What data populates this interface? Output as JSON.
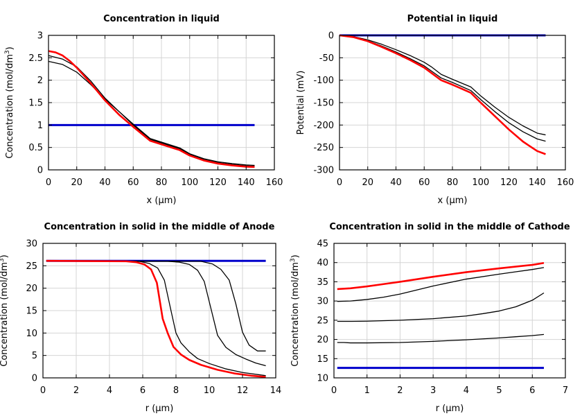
{
  "chart_data": [
    {
      "type": "line",
      "title": "Concentration in liquid",
      "xlabel": "x (µm)",
      "ylabel_main": "Concentration (mol/dm",
      "ylabel_sup": "3",
      "ylabel_tail": ")",
      "xlim": [
        0,
        160
      ],
      "ylim": [
        0,
        3
      ],
      "xticks": [
        0,
        20,
        40,
        60,
        80,
        100,
        120,
        140,
        160
      ],
      "yticks": [
        0,
        0.5,
        1,
        1.5,
        2,
        2.5,
        3
      ],
      "series": [
        {
          "name": "t0",
          "color": "#0000cc",
          "width": 3,
          "x": [
            0,
            146
          ],
          "y": [
            1.0,
            1.0
          ]
        },
        {
          "name": "t1",
          "color": "#000000",
          "width": 1.3,
          "x": [
            0,
            10,
            20,
            30,
            40,
            50,
            60,
            72,
            93,
            100,
            110,
            120,
            130,
            140,
            146
          ],
          "y": [
            2.42,
            2.35,
            2.18,
            1.9,
            1.58,
            1.3,
            1.02,
            0.7,
            0.49,
            0.36,
            0.25,
            0.18,
            0.14,
            0.11,
            0.1
          ]
        },
        {
          "name": "t2",
          "color": "#000000",
          "width": 1.3,
          "x": [
            0,
            10,
            20,
            30,
            40,
            50,
            60,
            72,
            93,
            100,
            110,
            120,
            130,
            140,
            146
          ],
          "y": [
            2.55,
            2.47,
            2.3,
            1.98,
            1.6,
            1.3,
            1.0,
            0.68,
            0.47,
            0.34,
            0.23,
            0.16,
            0.12,
            0.09,
            0.08
          ]
        },
        {
          "name": "t3",
          "color": "#ff0000",
          "width": 2.6,
          "x": [
            0,
            5,
            10,
            15,
            20,
            30,
            40,
            50,
            60,
            72,
            93,
            100,
            110,
            120,
            130,
            140,
            146
          ],
          "y": [
            2.65,
            2.62,
            2.55,
            2.43,
            2.28,
            1.93,
            1.55,
            1.23,
            0.96,
            0.65,
            0.44,
            0.32,
            0.21,
            0.14,
            0.1,
            0.07,
            0.065
          ]
        }
      ]
    },
    {
      "type": "line",
      "title": "Potential in liquid",
      "xlabel": "x (µm)",
      "ylabel_main": "Potential (mV)",
      "ylabel_sup": "",
      "ylabel_tail": "",
      "xlim": [
        0,
        160
      ],
      "ylim": [
        -300,
        0
      ],
      "xticks": [
        0,
        20,
        40,
        60,
        80,
        100,
        120,
        140,
        160
      ],
      "yticks": [
        0,
        -50,
        -100,
        -150,
        -200,
        -250,
        -300
      ],
      "series": [
        {
          "name": "t0",
          "color": "#0000cc",
          "width": 3,
          "x": [
            0,
            146
          ],
          "y": [
            0,
            0
          ]
        },
        {
          "name": "t1",
          "color": "#000000",
          "width": 1.3,
          "x": [
            0,
            10,
            20,
            30,
            40,
            50,
            60,
            65,
            72,
            80,
            93,
            100,
            110,
            120,
            130,
            140,
            146
          ],
          "y": [
            0,
            -3,
            -10,
            -20,
            -32,
            -45,
            -60,
            -70,
            -87,
            -98,
            -115,
            -135,
            -160,
            -183,
            -202,
            -218,
            -222
          ]
        },
        {
          "name": "t2",
          "color": "#000000",
          "width": 1.3,
          "x": [
            0,
            10,
            20,
            30,
            40,
            50,
            60,
            72,
            80,
            93,
            100,
            110,
            120,
            130,
            140,
            146
          ],
          "y": [
            0,
            -4,
            -12,
            -24,
            -37,
            -52,
            -68,
            -95,
            -105,
            -123,
            -143,
            -170,
            -195,
            -215,
            -231,
            -236
          ]
        },
        {
          "name": "t3",
          "color": "#ff0000",
          "width": 2.6,
          "x": [
            0,
            10,
            20,
            30,
            40,
            50,
            60,
            72,
            80,
            93,
            100,
            110,
            120,
            130,
            140,
            146
          ],
          "y": [
            0,
            -4,
            -13,
            -26,
            -40,
            -55,
            -72,
            -100,
            -110,
            -128,
            -150,
            -180,
            -210,
            -237,
            -258,
            -265
          ]
        }
      ]
    },
    {
      "type": "line",
      "title": "Concentration in solid in the middle of Anode",
      "xlabel": "r (µm)",
      "ylabel_main": "Concentration (mol/dm",
      "ylabel_sup": "3",
      "ylabel_tail": ")",
      "xlim": [
        0,
        14
      ],
      "ylim": [
        0,
        30
      ],
      "xticks": [
        0,
        2,
        4,
        6,
        8,
        10,
        12,
        14
      ],
      "yticks": [
        0,
        5,
        10,
        15,
        20,
        25,
        30
      ],
      "series": [
        {
          "name": "t0",
          "color": "#0000cc",
          "width": 3,
          "x": [
            0.2,
            13.4
          ],
          "y": [
            26.1,
            26.1
          ]
        },
        {
          "name": "t1",
          "color": "#000000",
          "width": 1.3,
          "x": [
            0.2,
            9.5,
            10.2,
            10.7,
            11.2,
            11.6,
            12.0,
            12.4,
            12.9,
            13.4
          ],
          "y": [
            26.1,
            26.0,
            25.4,
            24.2,
            21.8,
            16.5,
            10.2,
            7.3,
            6.0,
            6.0
          ]
        },
        {
          "name": "t2",
          "color": "#000000",
          "width": 1.3,
          "x": [
            0.2,
            7.5,
            8.2,
            8.8,
            9.3,
            9.7,
            10.1,
            10.5,
            11.0,
            11.6,
            12.2,
            12.8,
            13.4
          ],
          "y": [
            26.1,
            26.0,
            25.8,
            25.3,
            24.0,
            21.5,
            15.5,
            9.5,
            6.8,
            5.2,
            4.2,
            3.3,
            2.7
          ]
        },
        {
          "name": "t3",
          "color": "#000000",
          "width": 1.3,
          "x": [
            0.2,
            5.8,
            6.4,
            6.9,
            7.3,
            7.7,
            8.0,
            8.3,
            8.8,
            9.3,
            10.0,
            11.0,
            12.0,
            13.4
          ],
          "y": [
            26.1,
            26.0,
            25.5,
            24.5,
            21.8,
            15.0,
            10.0,
            7.8,
            5.8,
            4.3,
            3.2,
            2.0,
            1.2,
            0.5
          ]
        },
        {
          "name": "t4",
          "color": "#ff0000",
          "width": 2.6,
          "x": [
            0.2,
            5.0,
            5.6,
            6.1,
            6.5,
            6.85,
            7.2,
            7.5,
            7.85,
            8.3,
            8.8,
            9.5,
            10.5,
            11.5,
            12.5,
            13.4
          ],
          "y": [
            26.1,
            26.0,
            25.8,
            25.3,
            24.2,
            21.2,
            13.2,
            10.0,
            6.9,
            5.2,
            4.0,
            2.9,
            1.8,
            1.0,
            0.5,
            0.2
          ]
        }
      ]
    },
    {
      "type": "line",
      "title": "Concentration in solid in the middle of Cathode",
      "xlabel": "r (µm)",
      "ylabel_main": "Concentration (mol/dm",
      "ylabel_sup": "3",
      "ylabel_tail": ")",
      "xlim": [
        0,
        7
      ],
      "ylim": [
        10,
        45
      ],
      "xticks": [
        0,
        1,
        2,
        3,
        4,
        5,
        6,
        7
      ],
      "yticks": [
        10,
        15,
        20,
        25,
        30,
        35,
        40,
        45
      ],
      "series": [
        {
          "name": "t0",
          "color": "#0000cc",
          "width": 3,
          "x": [
            0.1,
            6.35
          ],
          "y": [
            12.6,
            12.6
          ]
        },
        {
          "name": "t1",
          "color": "#000000",
          "width": 1.3,
          "x": [
            0.1,
            0.3,
            0.5,
            1.0,
            2.0,
            3.0,
            4.0,
            5.0,
            5.5,
            6.0,
            6.35
          ],
          "y": [
            19.2,
            19.2,
            19.1,
            19.1,
            19.2,
            19.5,
            19.9,
            20.4,
            20.7,
            21.0,
            21.3
          ]
        },
        {
          "name": "t2",
          "color": "#000000",
          "width": 1.3,
          "x": [
            0.1,
            0.5,
            1.0,
            2.0,
            3.0,
            4.0,
            4.5,
            5.0,
            5.5,
            6.0,
            6.35
          ],
          "y": [
            24.7,
            24.7,
            24.75,
            25.0,
            25.4,
            26.1,
            26.7,
            27.4,
            28.5,
            30.2,
            32.1
          ]
        },
        {
          "name": "t3",
          "color": "#000000",
          "width": 1.3,
          "x": [
            0.1,
            0.5,
            1.0,
            1.5,
            2.0,
            3.0,
            4.0,
            5.0,
            5.5,
            6.0,
            6.35
          ],
          "y": [
            29.9,
            30.0,
            30.4,
            31.0,
            31.8,
            33.9,
            35.7,
            37.0,
            37.6,
            38.2,
            38.7
          ]
        },
        {
          "name": "t4",
          "color": "#ff0000",
          "width": 2.6,
          "x": [
            0.1,
            0.5,
            1.0,
            1.5,
            2.0,
            3.0,
            4.0,
            5.0,
            6.0,
            6.35
          ],
          "y": [
            33.1,
            33.3,
            33.8,
            34.4,
            35.0,
            36.3,
            37.5,
            38.5,
            39.4,
            39.9
          ]
        }
      ]
    }
  ]
}
